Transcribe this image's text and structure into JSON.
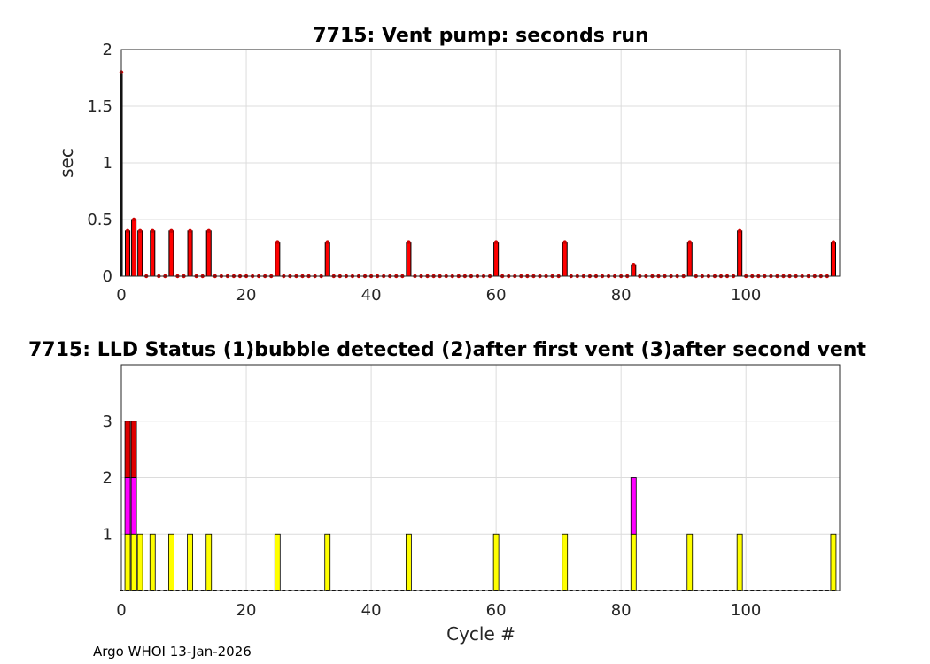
{
  "chart_data": [
    {
      "type": "bar",
      "title": "7715: Vent pump: seconds run",
      "xlabel": "",
      "ylabel": "sec",
      "xlim": [
        0,
        115
      ],
      "ylim": [
        0,
        2
      ],
      "xticks": [
        "0",
        "20",
        "40",
        "60",
        "80",
        "100"
      ],
      "yticks": [
        "0",
        "0.5",
        "1",
        "1.5",
        "2"
      ],
      "grid": true,
      "bar_color": "#ff0000",
      "marker_color": "#cc0000",
      "cycles": [
        0,
        1,
        2,
        3,
        4,
        5,
        6,
        7,
        8,
        9,
        10,
        11,
        12,
        13,
        14,
        15,
        16,
        17,
        18,
        19,
        20,
        21,
        22,
        23,
        24,
        25,
        26,
        27,
        28,
        29,
        30,
        31,
        32,
        33,
        34,
        35,
        36,
        37,
        38,
        39,
        40,
        41,
        42,
        43,
        44,
        45,
        46,
        47,
        48,
        49,
        50,
        51,
        52,
        53,
        54,
        55,
        56,
        57,
        58,
        59,
        60,
        61,
        62,
        63,
        64,
        65,
        66,
        67,
        68,
        69,
        70,
        71,
        72,
        73,
        74,
        75,
        76,
        77,
        78,
        79,
        80,
        81,
        82,
        83,
        84,
        85,
        86,
        87,
        88,
        89,
        90,
        91,
        92,
        93,
        94,
        95,
        96,
        97,
        98,
        99,
        100,
        101,
        102,
        103,
        104,
        105,
        106,
        107,
        108,
        109,
        110,
        111,
        112,
        113,
        114
      ],
      "values": [
        1.8,
        0.4,
        0.5,
        0.4,
        0,
        0.4,
        0,
        0,
        0.4,
        0,
        0,
        0.4,
        0,
        0,
        0.4,
        0,
        0,
        0,
        0,
        0,
        0,
        0,
        0,
        0,
        0,
        0.3,
        0,
        0,
        0,
        0,
        0,
        0,
        0,
        0.3,
        0,
        0,
        0,
        0,
        0,
        0,
        0,
        0,
        0,
        0,
        0,
        0,
        0.3,
        0,
        0,
        0,
        0,
        0,
        0,
        0,
        0,
        0,
        0,
        0,
        0,
        0,
        0.3,
        0,
        0,
        0,
        0,
        0,
        0,
        0,
        0,
        0,
        0,
        0.3,
        0,
        0,
        0,
        0,
        0,
        0,
        0,
        0,
        0,
        0,
        0.1,
        0,
        0,
        0,
        0,
        0,
        0,
        0,
        0,
        0.3,
        0,
        0,
        0,
        0,
        0,
        0,
        0,
        0.4,
        0,
        0,
        0,
        0,
        0,
        0,
        0,
        0,
        0,
        0,
        0,
        0,
        0,
        0,
        0.3
      ]
    },
    {
      "type": "bar",
      "title": "7715: LLD Status   (1)bubble detected   (2)after first vent  (3)after second vent",
      "xlabel": "Cycle #",
      "ylabel": "",
      "xlim": [
        0,
        115
      ],
      "ylim": [
        0,
        4
      ],
      "xticks": [
        "0",
        "20",
        "40",
        "60",
        "80",
        "100"
      ],
      "yticks": [
        "1",
        "2",
        "3"
      ],
      "grid": true,
      "colors": {
        "1": "#ffff00",
        "2": "#ff00ff",
        "3": "#dd0000"
      },
      "bars": [
        {
          "cycle": 1,
          "status": 3
        },
        {
          "cycle": 2,
          "status": 3
        },
        {
          "cycle": 3,
          "status": 1
        },
        {
          "cycle": 5,
          "status": 1
        },
        {
          "cycle": 8,
          "status": 1
        },
        {
          "cycle": 11,
          "status": 1
        },
        {
          "cycle": 14,
          "status": 1
        },
        {
          "cycle": 25,
          "status": 1
        },
        {
          "cycle": 33,
          "status": 1
        },
        {
          "cycle": 46,
          "status": 1
        },
        {
          "cycle": 60,
          "status": 1
        },
        {
          "cycle": 71,
          "status": 1
        },
        {
          "cycle": 82,
          "status": 2
        },
        {
          "cycle": 91,
          "status": 1
        },
        {
          "cycle": 99,
          "status": 1
        },
        {
          "cycle": 114,
          "status": 1
        }
      ]
    }
  ],
  "footer": "Argo WHOI 13-Jan-2026"
}
